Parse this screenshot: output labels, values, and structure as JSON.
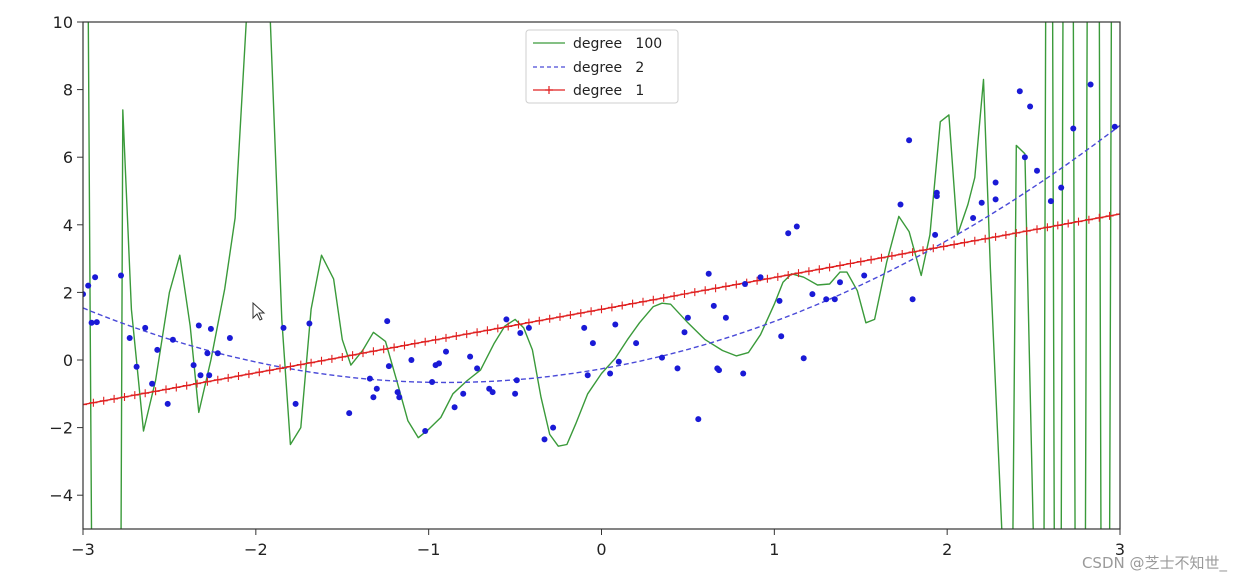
{
  "chart_data": {
    "type": "line",
    "xlim": [
      -3,
      3
    ],
    "ylim": [
      -5,
      10
    ],
    "xticks": [
      -3,
      -2,
      -1,
      0,
      1,
      2,
      3
    ],
    "yticks": [
      -4,
      -2,
      0,
      2,
      4,
      6,
      8,
      10
    ],
    "xtick_labels": [
      "−3",
      "−2",
      "−1",
      "0",
      "1",
      "2",
      "3"
    ],
    "ytick_labels": [
      "−4",
      "−2",
      "0",
      "2",
      "4",
      "6",
      "8",
      "10"
    ],
    "grid": false,
    "legend_position": "top-center",
    "series": [
      {
        "name": "degree   100",
        "style": "solid",
        "color": "#3a9a3a",
        "points": [
          [
            -3.0,
            10.5
          ],
          [
            -2.97,
            10.5
          ],
          [
            -2.95,
            -5.5
          ],
          [
            -2.78,
            -5.5
          ],
          [
            -2.77,
            7.4
          ],
          [
            -2.72,
            1.5
          ],
          [
            -2.65,
            -2.1
          ],
          [
            -2.58,
            -0.6
          ],
          [
            -2.5,
            2.0
          ],
          [
            -2.44,
            3.1
          ],
          [
            -2.38,
            1.0
          ],
          [
            -2.33,
            -1.55
          ],
          [
            -2.26,
            0.0
          ],
          [
            -2.18,
            2.1
          ],
          [
            -2.12,
            4.2
          ],
          [
            -2.05,
            10.5
          ],
          [
            -1.92,
            10.5
          ],
          [
            -1.85,
            1.2
          ],
          [
            -1.8,
            -2.5
          ],
          [
            -1.74,
            -2.0
          ],
          [
            -1.68,
            1.5
          ],
          [
            -1.62,
            3.1
          ],
          [
            -1.55,
            2.4
          ],
          [
            -1.5,
            0.6
          ],
          [
            -1.45,
            -0.15
          ],
          [
            -1.38,
            0.3
          ],
          [
            -1.32,
            0.82
          ],
          [
            -1.25,
            0.55
          ],
          [
            -1.18,
            -0.7
          ],
          [
            -1.12,
            -1.8
          ],
          [
            -1.06,
            -2.3
          ],
          [
            -1.0,
            -2.05
          ],
          [
            -0.93,
            -1.7
          ],
          [
            -0.86,
            -1.0
          ],
          [
            -0.78,
            -0.62
          ],
          [
            -0.7,
            -0.3
          ],
          [
            -0.62,
            0.5
          ],
          [
            -0.56,
            1.0
          ],
          [
            -0.5,
            1.2
          ],
          [
            -0.45,
            0.95
          ],
          [
            -0.4,
            0.3
          ],
          [
            -0.35,
            -1.1
          ],
          [
            -0.3,
            -2.2
          ],
          [
            -0.25,
            -2.55
          ],
          [
            -0.2,
            -2.5
          ],
          [
            -0.15,
            -1.9
          ],
          [
            -0.08,
            -1.0
          ],
          [
            0.0,
            -0.4
          ],
          [
            0.08,
            0.05
          ],
          [
            0.15,
            0.6
          ],
          [
            0.22,
            1.1
          ],
          [
            0.3,
            1.58
          ],
          [
            0.35,
            1.68
          ],
          [
            0.4,
            1.65
          ],
          [
            0.5,
            1.1
          ],
          [
            0.6,
            0.6
          ],
          [
            0.7,
            0.28
          ],
          [
            0.78,
            0.12
          ],
          [
            0.85,
            0.22
          ],
          [
            0.92,
            0.75
          ],
          [
            1.0,
            1.65
          ],
          [
            1.05,
            2.3
          ],
          [
            1.1,
            2.55
          ],
          [
            1.17,
            2.45
          ],
          [
            1.25,
            2.22
          ],
          [
            1.32,
            2.25
          ],
          [
            1.38,
            2.6
          ],
          [
            1.42,
            2.6
          ],
          [
            1.48,
            2.05
          ],
          [
            1.53,
            1.1
          ],
          [
            1.58,
            1.2
          ],
          [
            1.65,
            2.9
          ],
          [
            1.72,
            4.25
          ],
          [
            1.78,
            3.8
          ],
          [
            1.85,
            2.5
          ],
          [
            1.9,
            3.7
          ],
          [
            1.96,
            7.05
          ],
          [
            2.01,
            7.25
          ],
          [
            2.06,
            3.7
          ],
          [
            2.12,
            4.6
          ],
          [
            2.16,
            5.4
          ],
          [
            2.21,
            8.3
          ],
          [
            2.25,
            2.7
          ],
          [
            2.32,
            -5.5
          ],
          [
            2.38,
            -5.5
          ],
          [
            2.4,
            6.35
          ],
          [
            2.45,
            6.1
          ],
          [
            2.5,
            -5.5
          ],
          [
            2.56,
            -5.5
          ],
          [
            2.57,
            10.5
          ],
          [
            2.61,
            10.5
          ],
          [
            2.62,
            -5.5
          ],
          [
            2.66,
            -5.5
          ],
          [
            2.67,
            10.5
          ],
          [
            2.73,
            10.5
          ],
          [
            2.74,
            -5.5
          ],
          [
            2.8,
            -5.5
          ],
          [
            2.81,
            10.5
          ],
          [
            2.88,
            10.5
          ],
          [
            2.89,
            -5.5
          ],
          [
            2.94,
            -5.5
          ],
          [
            2.95,
            10.5
          ],
          [
            3.0,
            10.5
          ]
        ]
      },
      {
        "name": "degree   2",
        "style": "dashed",
        "color": "#4a4ad8",
        "coefficients": [
          -0.26,
          0.9,
          0.5
        ]
      },
      {
        "name": "degree   1",
        "style": "solid-plus-markers",
        "color": "#e02020",
        "intercept": 1.5,
        "slope": 0.94
      },
      {
        "name": "",
        "style": "scatter",
        "color": "#1a1ad6",
        "points": [
          [
            -3.0,
            1.95
          ],
          [
            -2.97,
            2.2
          ],
          [
            -2.95,
            1.1
          ],
          [
            -2.93,
            2.45
          ],
          [
            -2.92,
            1.12
          ],
          [
            -2.78,
            2.5
          ],
          [
            -2.73,
            0.65
          ],
          [
            -2.69,
            -0.2
          ],
          [
            -2.64,
            0.95
          ],
          [
            -2.6,
            -0.7
          ],
          [
            -2.57,
            0.3
          ],
          [
            -2.51,
            -1.3
          ],
          [
            -2.48,
            0.6
          ],
          [
            -2.36,
            -0.15
          ],
          [
            -2.33,
            1.02
          ],
          [
            -2.32,
            -0.45
          ],
          [
            -2.28,
            0.2
          ],
          [
            -2.27,
            -0.45
          ],
          [
            -2.26,
            0.92
          ],
          [
            -2.22,
            0.2
          ],
          [
            -2.15,
            0.65
          ],
          [
            -1.84,
            0.95
          ],
          [
            -1.77,
            -1.3
          ],
          [
            -1.69,
            1.08
          ],
          [
            -1.46,
            -1.57
          ],
          [
            -1.34,
            -0.55
          ],
          [
            -1.32,
            -1.1
          ],
          [
            -1.3,
            -0.85
          ],
          [
            -1.24,
            1.15
          ],
          [
            -1.23,
            -0.18
          ],
          [
            -1.18,
            -0.95
          ],
          [
            -1.17,
            -1.1
          ],
          [
            -1.1,
            0.0
          ],
          [
            -1.02,
            -2.1
          ],
          [
            -0.98,
            -0.65
          ],
          [
            -0.96,
            -0.15
          ],
          [
            -0.94,
            -0.1
          ],
          [
            -0.9,
            0.25
          ],
          [
            -0.85,
            -1.4
          ],
          [
            -0.8,
            -1.0
          ],
          [
            -0.76,
            0.1
          ],
          [
            -0.72,
            -0.25
          ],
          [
            -0.65,
            -0.85
          ],
          [
            -0.63,
            -0.95
          ],
          [
            -0.55,
            1.2
          ],
          [
            -0.5,
            -1.0
          ],
          [
            -0.49,
            -0.6
          ],
          [
            -0.47,
            0.8
          ],
          [
            -0.42,
            0.95
          ],
          [
            -0.33,
            -2.35
          ],
          [
            -0.28,
            -2.0
          ],
          [
            -0.1,
            0.95
          ],
          [
            -0.08,
            -0.45
          ],
          [
            -0.05,
            0.5
          ],
          [
            0.05,
            -0.4
          ],
          [
            0.08,
            1.05
          ],
          [
            0.1,
            -0.05
          ],
          [
            0.2,
            0.5
          ],
          [
            0.35,
            0.07
          ],
          [
            0.44,
            -0.25
          ],
          [
            0.48,
            0.82
          ],
          [
            0.5,
            1.25
          ],
          [
            0.56,
            -1.75
          ],
          [
            0.62,
            2.55
          ],
          [
            0.65,
            1.6
          ],
          [
            0.67,
            -0.25
          ],
          [
            0.68,
            -0.3
          ],
          [
            0.72,
            1.25
          ],
          [
            0.82,
            -0.4
          ],
          [
            0.83,
            2.25
          ],
          [
            0.92,
            2.45
          ],
          [
            1.03,
            1.75
          ],
          [
            1.04,
            0.7
          ],
          [
            1.08,
            3.75
          ],
          [
            1.13,
            3.95
          ],
          [
            1.17,
            0.05
          ],
          [
            1.22,
            1.95
          ],
          [
            1.3,
            1.8
          ],
          [
            1.35,
            1.8
          ],
          [
            1.38,
            2.3
          ],
          [
            1.52,
            2.5
          ],
          [
            1.73,
            4.6
          ],
          [
            1.78,
            6.5
          ],
          [
            1.8,
            1.8
          ],
          [
            1.93,
            3.7
          ],
          [
            1.94,
            4.95
          ],
          [
            1.94,
            4.85
          ],
          [
            2.15,
            4.2
          ],
          [
            2.2,
            4.65
          ],
          [
            2.28,
            5.25
          ],
          [
            2.28,
            4.75
          ],
          [
            2.42,
            7.95
          ],
          [
            2.45,
            6.0
          ],
          [
            2.48,
            7.5
          ],
          [
            2.52,
            5.6
          ],
          [
            2.6,
            4.7
          ],
          [
            2.66,
            5.1
          ],
          [
            2.73,
            6.85
          ],
          [
            2.83,
            8.15
          ],
          [
            2.97,
            6.9
          ]
        ]
      }
    ]
  },
  "watermark": "CSDN @芝士不知世_"
}
